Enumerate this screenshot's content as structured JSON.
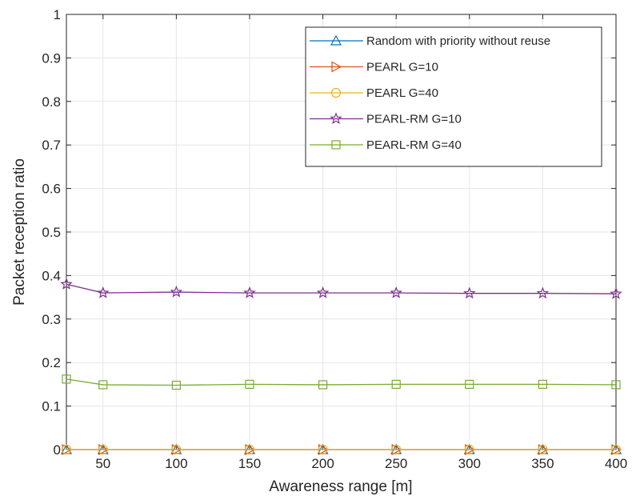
{
  "chart_data": {
    "type": "line",
    "title": "",
    "xlabel": "Awareness range [m]",
    "ylabel": "Packet reception ratio",
    "xlim": [
      25,
      400
    ],
    "ylim": [
      0,
      1
    ],
    "grid": true,
    "legend_position": "top-right",
    "xticks": [
      "50",
      "100",
      "150",
      "200",
      "250",
      "300",
      "350",
      "400"
    ],
    "yticks": [
      "0",
      "0.1",
      "0.2",
      "0.3",
      "0.4",
      "0.5",
      "0.6",
      "0.7",
      "0.8",
      "0.9",
      "1"
    ],
    "x": [
      25,
      50,
      100,
      150,
      200,
      250,
      300,
      350,
      400
    ],
    "series": [
      {
        "name": "Random with priority without reuse",
        "color": "#0072BD",
        "marker": "triangle-up",
        "values": [
          0,
          0,
          0,
          0,
          0,
          0,
          0,
          0,
          0
        ]
      },
      {
        "name": "PEARL G=10",
        "color": "#D95319",
        "marker": "triangle-right",
        "values": [
          0,
          0,
          0,
          0,
          0,
          0,
          0,
          0,
          0
        ]
      },
      {
        "name": "PEARL G=40",
        "color": "#EDB120",
        "marker": "circle",
        "values": [
          0,
          0,
          0,
          0,
          0,
          0,
          0,
          0,
          0
        ]
      },
      {
        "name": "PEARL-RM G=10",
        "color": "#7E2F8E",
        "marker": "star",
        "values": [
          0.38,
          0.36,
          0.362,
          0.36,
          0.36,
          0.36,
          0.359,
          0.359,
          0.358
        ]
      },
      {
        "name": "PEARL-RM G=40",
        "color": "#77AC30",
        "marker": "square",
        "values": [
          0.162,
          0.149,
          0.148,
          0.15,
          0.149,
          0.15,
          0.15,
          0.15,
          0.149
        ]
      }
    ]
  }
}
